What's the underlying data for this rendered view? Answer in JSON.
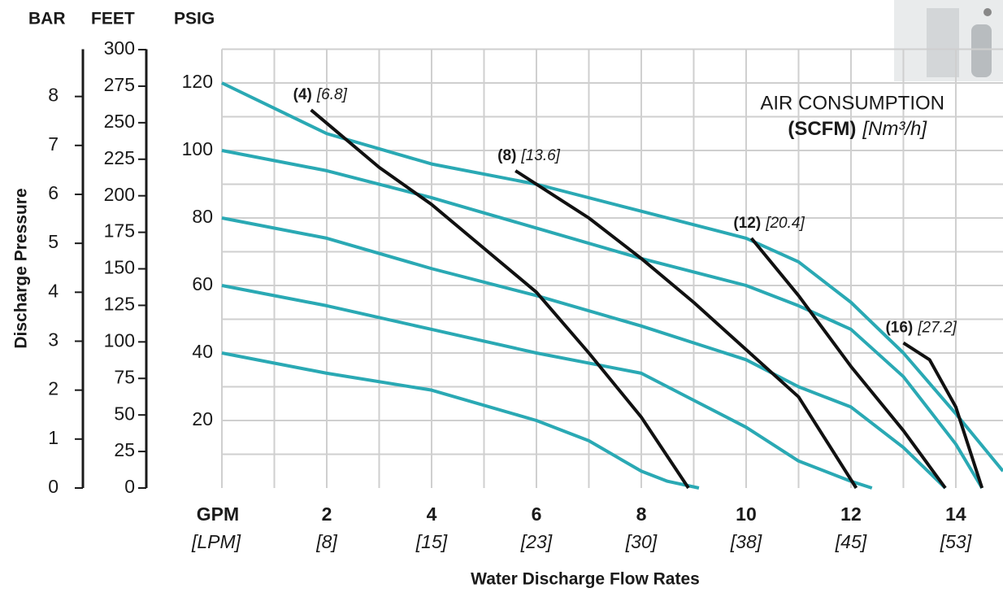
{
  "chart_data": {
    "type": "line",
    "ylabel": "Discharge Pressure",
    "xlabel": "Water Discharge Flow Rates",
    "x_unit": "GPM",
    "x_unit_secondary": "[LPM]",
    "y_unit": "PSIG",
    "xlim": [
      0,
      14.9
    ],
    "ylim": [
      0,
      130
    ],
    "xticks": [
      2,
      4,
      6,
      8,
      10,
      12,
      14
    ],
    "xticks_secondary": [
      {
        "value": 2,
        "label": "[8]"
      },
      {
        "value": 4,
        "label": "[15]"
      },
      {
        "value": 6,
        "label": "[23]"
      },
      {
        "value": 8,
        "label": "[30]"
      },
      {
        "value": 10,
        "label": "[38]"
      },
      {
        "value": 12,
        "label": "[45]"
      },
      {
        "value": 14,
        "label": "[53]"
      }
    ],
    "yticks": [
      20,
      40,
      60,
      80,
      100,
      120
    ],
    "xgrid": [
      0,
      1,
      2,
      3,
      4,
      5,
      6,
      7,
      8,
      9,
      10,
      11,
      12,
      13,
      14
    ],
    "ygrid": [
      10,
      20,
      30,
      40,
      50,
      60,
      70,
      80,
      90,
      100,
      110,
      120,
      130
    ],
    "grid_color": "#cfcfcf",
    "feet_axis": {
      "label": "FEET",
      "lim": [
        0,
        300.3
      ],
      "ticks": [
        0,
        25,
        50,
        75,
        100,
        125,
        150,
        175,
        200,
        225,
        250,
        275,
        300
      ]
    },
    "bar_axis": {
      "label": "BAR",
      "lim": [
        0,
        8.966
      ],
      "ticks": [
        0,
        1,
        2,
        3,
        4,
        5,
        6,
        7,
        8
      ]
    },
    "annotation": {
      "title": "AIR CONSUMPTION",
      "unit": "(SCFM)",
      "unit_metric": "[Nm³/h]"
    },
    "series": [
      {
        "color": "#2aa9b4",
        "x": [
          0,
          2,
          4,
          6,
          8,
          10,
          11,
          12,
          13,
          14,
          14.9
        ],
        "values": [
          120,
          105,
          96,
          90,
          82,
          74,
          67,
          55,
          40,
          22,
          5
        ]
      },
      {
        "color": "#2aa9b4",
        "x": [
          0,
          2,
          4,
          6,
          8,
          10,
          11,
          12,
          13,
          14,
          14.5
        ],
        "values": [
          100,
          94,
          86,
          77,
          68,
          60,
          54,
          47,
          33,
          13,
          0
        ]
      },
      {
        "color": "#2aa9b4",
        "x": [
          0,
          2,
          4,
          6,
          8,
          10,
          11,
          12,
          13,
          13.8
        ],
        "values": [
          80,
          74,
          65,
          57,
          48,
          38,
          30,
          24,
          12,
          0
        ]
      },
      {
        "color": "#2aa9b4",
        "x": [
          0,
          2,
          4,
          6,
          8,
          9,
          10,
          11,
          12,
          12.4
        ],
        "values": [
          60,
          54,
          47,
          40,
          34,
          26,
          18,
          8,
          2,
          0
        ]
      },
      {
        "color": "#2aa9b4",
        "x": [
          0,
          2,
          4,
          6,
          7,
          8,
          8.5,
          9.1
        ],
        "values": [
          40,
          34,
          29,
          20,
          14,
          5,
          2,
          0
        ]
      },
      {
        "color": "#111111",
        "label": "(4)",
        "label_metric": "[6.8]",
        "x": [
          1.7,
          3,
          4,
          5,
          6,
          7,
          8,
          8.9
        ],
        "values": [
          112,
          95,
          84,
          71,
          58,
          40,
          21,
          0
        ]
      },
      {
        "color": "#111111",
        "label": "(8)",
        "label_metric": "[13.6]",
        "x": [
          5.6,
          7,
          8,
          9,
          10,
          11,
          12.1
        ],
        "values": [
          94,
          80,
          68,
          55,
          41,
          27,
          0
        ]
      },
      {
        "color": "#111111",
        "label": "(12)",
        "label_metric": "[20.4]",
        "x": [
          10.1,
          11,
          12,
          13,
          13.8
        ],
        "values": [
          74,
          57,
          36,
          17,
          0
        ]
      },
      {
        "color": "#111111",
        "label": "(16)",
        "label_metric": "[27.2]",
        "x": [
          13,
          13.5,
          14,
          14.5
        ],
        "values": [
          43,
          38,
          24,
          0
        ]
      }
    ]
  }
}
